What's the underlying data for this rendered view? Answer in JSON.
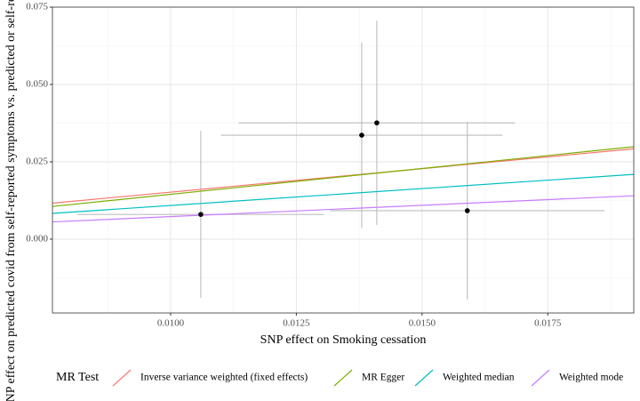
{
  "chart_data": {
    "type": "scatter",
    "x_label": "SNP effect on Smoking cessation",
    "y_label": "SNP effect on predicted covid from self-reported symptoms vs. predicted or self-reported non-covid",
    "x": [
      0.0106,
      0.0138,
      0.0141,
      0.0159
    ],
    "values": [
      0.008,
      0.0336,
      0.0376,
      0.0092
    ],
    "x_err": [
      0.00245,
      0.0028,
      0.00275,
      0.00273
    ],
    "y_err": [
      0.027,
      0.03,
      0.033,
      0.0287
    ],
    "point_color": "#000000",
    "errorbar_color": "#bdbdbd",
    "xlim": [
      0.00765,
      0.01921
    ],
    "ylim": [
      -0.02385,
      0.075
    ],
    "xticks": [
      {
        "value": 0.01,
        "label": "0.0100"
      },
      {
        "value": 0.0125,
        "label": "0.0125"
      },
      {
        "value": 0.015,
        "label": "0.0150"
      },
      {
        "value": 0.0175,
        "label": "0.0175"
      }
    ],
    "yticks": [
      {
        "value": 0,
        "label": "0.000"
      },
      0.025,
      {
        "value": 0.05,
        "label": "0.050"
      },
      0.075
    ],
    "x_minor_grid": [
      0.00875,
      0.01125,
      0.01375,
      0.01625,
      0.01875
    ],
    "y_minor_grid": [
      -0.0125,
      0.0125,
      0.0375,
      0.0625
    ],
    "grid": true,
    "legend_title": "MR Test",
    "legend_position": "bottom",
    "series": [
      {
        "name": "Inverse variance weighted (fixed effects)",
        "color": "#f8766d",
        "slope": 1.52,
        "intercept": 0
      },
      {
        "name": "MR Egger",
        "color": "#7cae00",
        "slope": 1.67,
        "intercept": -0.0022
      },
      {
        "name": "Weighted median",
        "color": "#00bfc4",
        "slope": 1.09,
        "intercept": 0
      },
      {
        "name": "Weighted mode",
        "color": "#c77cff",
        "slope": 0.73,
        "intercept": 0
      }
    ]
  }
}
